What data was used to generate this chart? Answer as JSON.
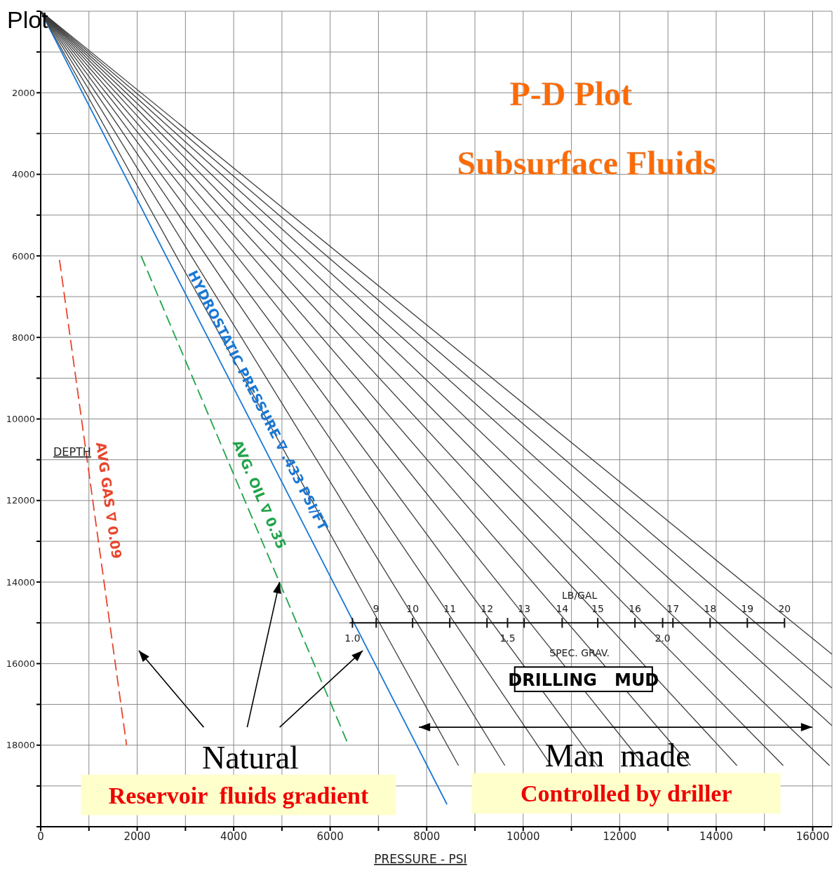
{
  "chart_data": {
    "type": "line",
    "title": "P-D Plot",
    "subtitle": "Subsurface Fluids",
    "xlabel": "PRESSURE  -  PSI",
    "ylabel": "DEPTH",
    "xlim": [
      0,
      16400
    ],
    "ylim": [
      20000,
      0
    ],
    "xticks": [
      0,
      {
        "value": 1000,
        "label": null
      },
      2000,
      {
        "value": 3000,
        "label": null
      },
      4000,
      {
        "value": 5000,
        "label": null
      },
      6000,
      {
        "value": 7000,
        "label": null
      },
      8000,
      {
        "value": 9000,
        "label": null
      },
      10000,
      {
        "value": 11000,
        "label": null
      },
      12000,
      {
        "value": 13000,
        "label": null
      },
      14000,
      {
        "value": 15000,
        "label": null
      },
      16000
    ],
    "yticks": [
      {
        "value": 0,
        "label": null
      },
      {
        "value": 1000,
        "label": null
      },
      2000,
      {
        "value": 3000,
        "label": null
      },
      4000,
      {
        "value": 5000,
        "label": null
      },
      6000,
      {
        "value": 7000,
        "label": null
      },
      8000,
      {
        "value": 9000,
        "label": null
      },
      10000,
      {
        "value": 11000,
        "label": null
      },
      12000,
      {
        "value": 13000,
        "label": null
      },
      14000,
      {
        "value": 15000,
        "label": null
      },
      16000,
      {
        "value": 17000,
        "label": null
      },
      18000,
      {
        "value": 19000,
        "label": null
      },
      {
        "value": 20000,
        "label": null
      }
    ],
    "grid": true,
    "marker": "none",
    "series": [
      {
        "name": "AVG  GAS  ∇ 0.09",
        "color": "#e8452c",
        "line_style": "dashed",
        "x": [
          390,
          1780
        ],
        "values": [
          6100,
          18000
        ]
      },
      {
        "name": "AVG.  OIL  ∇ 0.35",
        "color": "#20a44a",
        "line_style": "dashed",
        "x": [
          2080,
          6380
        ],
        "values": [
          6000,
          18000
        ]
      },
      {
        "name": "HYDROSTATIC  PRESSURE ∇ .433 PSI/FT",
        "color": "#1a78d4",
        "x": [
          0,
          8420
        ],
        "values": [
          0,
          19450
        ]
      },
      {
        "color": "#3c3c3c",
        "x": [
          0,
          8660
        ],
        "values": [
          0,
          18500
        ]
      },
      {
        "color": "#3c3c3c",
        "x": [
          0,
          9620
        ],
        "values": [
          0,
          18500
        ]
      },
      {
        "color": "#3c3c3c",
        "x": [
          0,
          10580
        ],
        "values": [
          0,
          18500
        ]
      },
      {
        "color": "#3c3c3c",
        "x": [
          0,
          11540
        ],
        "values": [
          0,
          18500
        ]
      },
      {
        "color": "#3c3c3c",
        "x": [
          0,
          12510
        ],
        "values": [
          0,
          18500
        ]
      },
      {
        "color": "#3c3c3c",
        "x": [
          0,
          13470
        ],
        "values": [
          0,
          18500
        ]
      },
      {
        "color": "#3c3c3c",
        "x": [
          0,
          14430
        ],
        "values": [
          0,
          18500
        ]
      },
      {
        "color": "#3c3c3c",
        "x": [
          0,
          15390
        ],
        "values": [
          0,
          18500
        ]
      },
      {
        "color": "#3c3c3c",
        "x": [
          0,
          16350
        ],
        "values": [
          0,
          18500
        ]
      },
      {
        "color": "#3c3c3c",
        "x": [
          0,
          16400
        ],
        "values": [
          0,
          17520
        ]
      },
      {
        "color": "#3c3c3c",
        "x": [
          0,
          16400
        ],
        "values": [
          0,
          16600
        ]
      },
      {
        "color": "#3c3c3c",
        "x": [
          0,
          16400
        ],
        "values": [
          0,
          15770
        ]
      }
    ],
    "annotations": [
      "Plot",
      "9",
      "10",
      "11",
      "12",
      "13",
      "14",
      "15",
      "16",
      "17",
      "18",
      "19",
      "20",
      "LB/GAL",
      "1.0",
      "1.5",
      "2.0",
      "SPEC. GRAV.",
      "DRILLING   MUD",
      {
        "text": "Natural",
        "x": 4950,
        "y": 14000
      },
      "Reservoir  fluids gradient",
      "Man  made",
      "Controlled by driller"
    ]
  }
}
